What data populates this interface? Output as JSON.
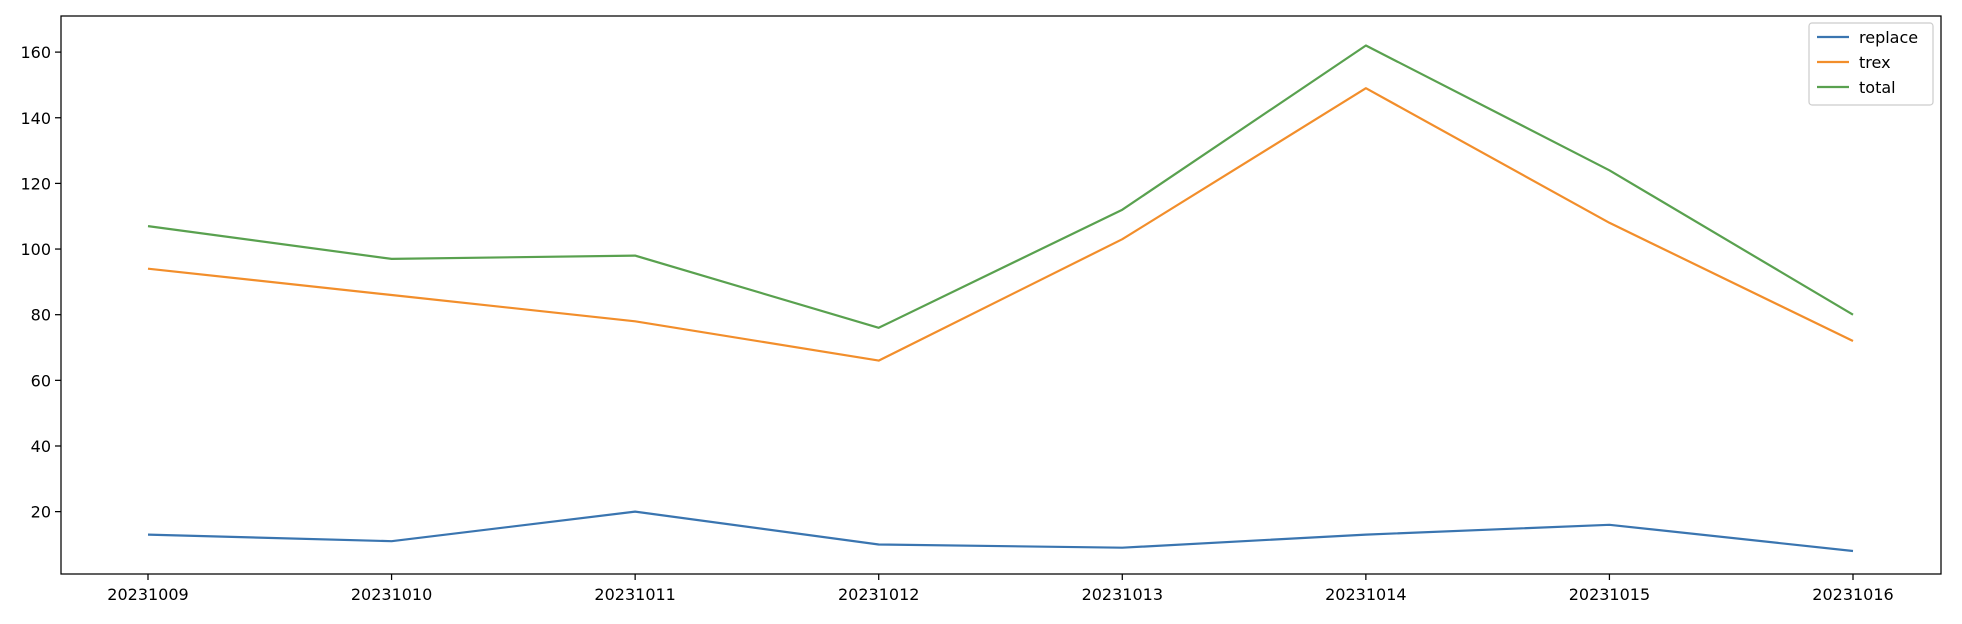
{
  "chart_data": {
    "type": "line",
    "title": "",
    "xlabel": "",
    "ylabel": "",
    "categories": [
      "20231009",
      "20231010",
      "20231011",
      "20231012",
      "20231013",
      "20231014",
      "20231015",
      "20231016"
    ],
    "ylim": [
      1,
      171
    ],
    "yticks": [
      20,
      40,
      60,
      80,
      100,
      120,
      140,
      160
    ],
    "grid": false,
    "legend_position": "top-right",
    "series": [
      {
        "name": "replace",
        "color": "#3a75b0",
        "values": [
          13,
          11,
          20,
          10,
          9,
          13,
          16,
          8
        ]
      },
      {
        "name": "trex",
        "color": "#f28e2b",
        "values": [
          94,
          86,
          78,
          66,
          103,
          149,
          108,
          72
        ]
      },
      {
        "name": "total",
        "color": "#59a14f",
        "values": [
          107,
          97,
          98,
          76,
          112,
          162,
          124,
          80
        ]
      }
    ]
  }
}
